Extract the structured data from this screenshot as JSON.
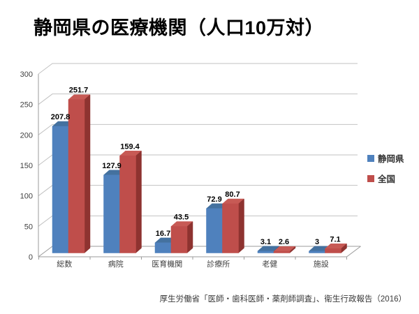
{
  "slide": {
    "title": "静岡県の医療機関（人口10万対）",
    "source": "厚生労働省「医師・歯科医師・薬剤師調査」、衛生行政報告（2016）"
  },
  "chart_data": {
    "type": "bar",
    "style": "3d-clustered-column",
    "title": "静岡県の医療機関（人口10万対）",
    "categories": [
      "総数",
      "病院",
      "医育機関",
      "診療所",
      "老健",
      "施設"
    ],
    "series": [
      {
        "name": "静岡県",
        "values": [
          207.8,
          127.9,
          16.7,
          72.9,
          3.1,
          3
        ],
        "labels": [
          "207.8",
          "127.9",
          "16.7",
          "72.9",
          "3.1",
          "3"
        ],
        "colors": {
          "front": "#4f81bd",
          "top": "#44719f",
          "side": "#30557f"
        }
      },
      {
        "name": "全国",
        "values": [
          251.7,
          159.4,
          43.5,
          80.7,
          2.6,
          7.1
        ],
        "labels": [
          "251.7",
          "159.4",
          "43.5",
          "80.7",
          "2.6",
          "7.1"
        ],
        "colors": {
          "front": "#bf4e4b",
          "top": "#c75a55",
          "side": "#8e3330"
        }
      }
    ],
    "xlabel": "",
    "ylabel": "",
    "ylim": [
      0,
      300
    ],
    "yticks": [
      0,
      50,
      100,
      150,
      200,
      250,
      300
    ],
    "grid": true,
    "grid_color": "#c2c2c2",
    "axis_color": "#9b9b9b",
    "legend_position": "right"
  }
}
